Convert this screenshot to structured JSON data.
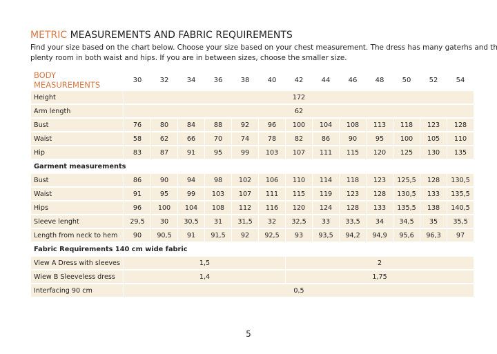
{
  "header": {
    "title_accent": "METRIC",
    "title": "MEASUREMENTS AND FABRIC REQUIREMENTS",
    "intro": [
      "Find your size based on the chart below. Choose your size based on your chest measurement. The dress has many gaterhs and there’s",
      "plenty room in both waist and hips. If you are in between sizes, choose the smaller size."
    ]
  },
  "table": {
    "header_label": "BODY MEASUREMENTS",
    "sizes": [
      "30",
      "32",
      "34",
      "36",
      "38",
      "40",
      "42",
      "44",
      "46",
      "48",
      "50",
      "52",
      "54"
    ],
    "rows": [
      {
        "label": "Height",
        "cells": [
          "172"
        ]
      },
      {
        "label": "Arm length",
        "cells": [
          "62"
        ]
      },
      {
        "label": "Bust",
        "cells": [
          "76",
          "80",
          "84",
          "88",
          "92",
          "96",
          "100",
          "104",
          "108",
          "113",
          "118",
          "123",
          "128"
        ]
      },
      {
        "label": "Waist",
        "cells": [
          "58",
          "62",
          "66",
          "70",
          "74",
          "78",
          "82",
          "86",
          "90",
          "95",
          "100",
          "105",
          "110"
        ]
      },
      {
        "label": "Hip",
        "cells": [
          "83",
          "87",
          "91",
          "95",
          "99",
          "103",
          "107",
          "111",
          "115",
          "120",
          "125",
          "130",
          "135"
        ]
      },
      {
        "section": "Garment measurements"
      },
      {
        "label": "Bust",
        "cells": [
          "86",
          "90",
          "94",
          "98",
          "102",
          "106",
          "110",
          "114",
          "118",
          "123",
          "125,5",
          "128",
          "130,5"
        ]
      },
      {
        "label": "Waist",
        "cells": [
          "91",
          "95",
          "99",
          "103",
          "107",
          "111",
          "115",
          "119",
          "123",
          "128",
          "130,5",
          "133",
          "135,5"
        ]
      },
      {
        "label": "Hips",
        "cells": [
          "96",
          "100",
          "104",
          "108",
          "112",
          "116",
          "120",
          "124",
          "128",
          "133",
          "135,5",
          "138",
          "140,5"
        ]
      },
      {
        "label": "Sleeve lenght",
        "cells": [
          "29,5",
          "30",
          "30,5",
          "31",
          "31,5",
          "32",
          "32,5",
          "33",
          "33,5",
          "34",
          "34,5",
          "35",
          "35,5"
        ]
      },
      {
        "label": "Length from neck to hem",
        "cells": [
          "90",
          "90,5",
          "91",
          "91,5",
          "92",
          "92,5",
          "93",
          "93,5",
          "94,2",
          "94,9",
          "95,6",
          "96,3",
          "97"
        ]
      },
      {
        "section": "Fabric Requirements 140 cm wide fabric"
      },
      {
        "label": "View A Dress with sleeves",
        "cells": [
          "1,5",
          "2"
        ]
      },
      {
        "label": "Wiew B Sleeveless dress",
        "cells": [
          "1,4",
          "1,75"
        ]
      },
      {
        "label": "Interfacing 90 cm",
        "cells": [
          "0,5"
        ]
      }
    ]
  },
  "page_number": "5"
}
